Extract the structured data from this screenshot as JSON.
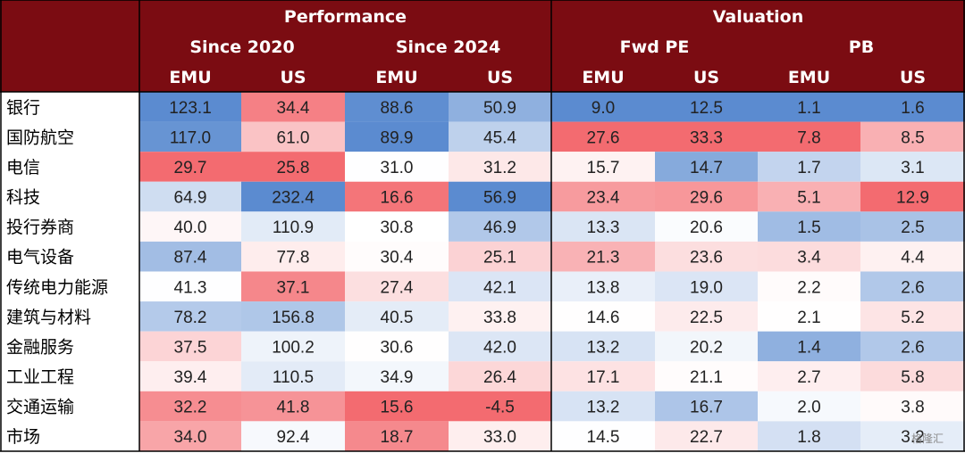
{
  "chart_data": {
    "type": "heatmap",
    "groups": [
      {
        "name": "Performance",
        "subgroups": [
          {
            "name": "Since 2020",
            "columns": [
              "EMU",
              "US"
            ]
          },
          {
            "name": "Since 2024",
            "columns": [
              "EMU",
              "US"
            ]
          }
        ]
      },
      {
        "name": "Valuation",
        "subgroups": [
          {
            "name": "Fwd PE",
            "columns": [
              "EMU",
              "US"
            ]
          },
          {
            "name": "PB",
            "columns": [
              "EMU",
              "US"
            ]
          }
        ]
      }
    ],
    "rows": [
      {
        "label": "银行",
        "values": [
          "123.1",
          "34.4",
          "88.6",
          "50.9",
          "9.0",
          "12.5",
          "1.1",
          "1.6"
        ]
      },
      {
        "label": "国防航空",
        "values": [
          "117.0",
          "61.0",
          "89.9",
          "45.4",
          "27.6",
          "33.3",
          "7.8",
          "8.5"
        ]
      },
      {
        "label": "电信",
        "values": [
          "29.7",
          "25.8",
          "31.0",
          "31.2",
          "15.7",
          "14.7",
          "1.7",
          "3.1"
        ]
      },
      {
        "label": "科技",
        "values": [
          "64.9",
          "232.4",
          "16.6",
          "56.9",
          "23.4",
          "29.6",
          "5.1",
          "12.9"
        ]
      },
      {
        "label": "投行券商",
        "values": [
          "40.0",
          "110.9",
          "30.8",
          "46.9",
          "13.3",
          "20.6",
          "1.5",
          "2.5"
        ]
      },
      {
        "label": "电气设备",
        "values": [
          "87.4",
          "77.8",
          "30.4",
          "25.1",
          "21.3",
          "23.6",
          "3.4",
          "4.4"
        ]
      },
      {
        "label": "传统电力能源",
        "values": [
          "41.3",
          "37.1",
          "27.4",
          "42.1",
          "13.8",
          "19.0",
          "2.2",
          "2.6"
        ]
      },
      {
        "label": "建筑与材料",
        "values": [
          "78.2",
          "156.8",
          "40.5",
          "33.8",
          "14.6",
          "22.5",
          "2.1",
          "5.2"
        ]
      },
      {
        "label": "金融服务",
        "values": [
          "37.5",
          "100.2",
          "30.6",
          "42.0",
          "13.2",
          "20.2",
          "1.4",
          "2.6"
        ]
      },
      {
        "label": "工业工程",
        "values": [
          "39.4",
          "110.5",
          "34.9",
          "26.4",
          "17.1",
          "21.1",
          "2.7",
          "5.8"
        ]
      },
      {
        "label": "交通运输",
        "values": [
          "32.2",
          "41.8",
          "15.6",
          "-4.5",
          "13.2",
          "16.7",
          "2.0",
          "3.8"
        ]
      },
      {
        "label": "市场",
        "values": [
          "34.0",
          "92.4",
          "18.7",
          "33.0",
          "14.5",
          "22.7",
          "1.8",
          "3.2"
        ]
      }
    ],
    "color_scale": {
      "low": "#5b8bd0",
      "mid": "#ffffff",
      "high": "#f36b70"
    },
    "header_color": "#7b0c12"
  },
  "watermark": "格隆汇"
}
